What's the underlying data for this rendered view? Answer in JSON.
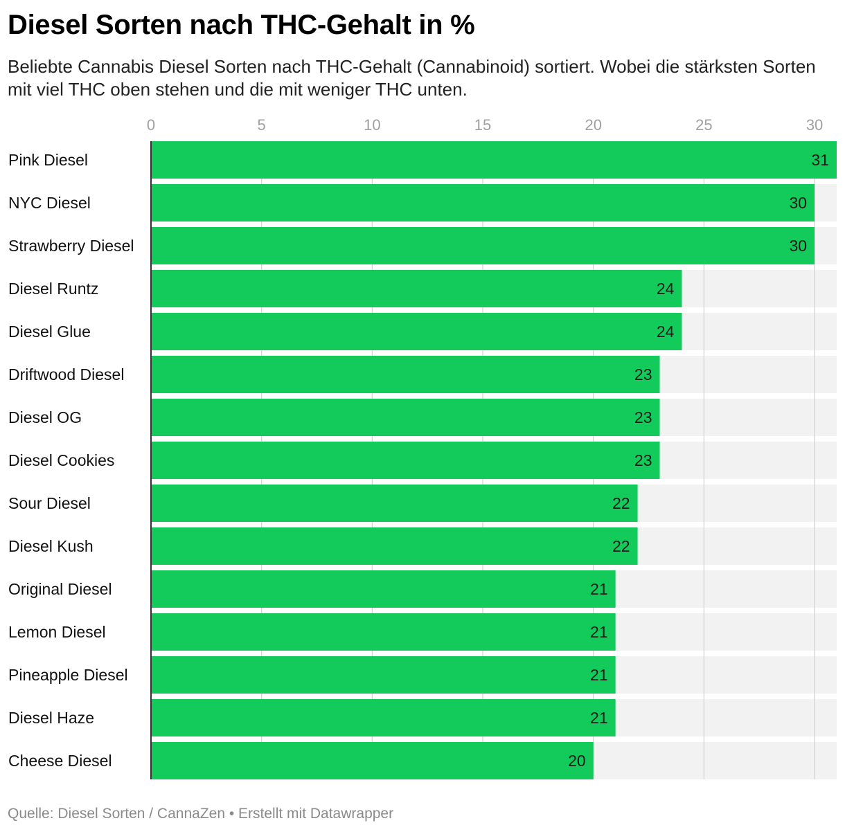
{
  "header": {
    "title": "Diesel Sorten nach THC-Gehalt in %",
    "subtitle": "Beliebte Cannabis Diesel Sorten nach THC-Gehalt (Cannabinoid) sortiert. Wobei die stärksten Sorten mit viel THC oben stehen und die mit weniger THC unten."
  },
  "footer": {
    "text": "Quelle: Diesel Sorten / CannaZen • Erstellt mit Datawrapper"
  },
  "colors": {
    "bar": "#13cb5a",
    "track": "#f2f2f2",
    "grid": "#d4d4d4",
    "axis": "#333333"
  },
  "chart_data": {
    "type": "bar",
    "orientation": "horizontal",
    "title": "Diesel Sorten nach THC-Gehalt in %",
    "xlabel": "",
    "ylabel": "",
    "xlim": [
      0,
      31
    ],
    "ticks": [
      0,
      5,
      10,
      15,
      20,
      25,
      30
    ],
    "grid": true,
    "categories": [
      "Pink Diesel",
      "NYC Diesel",
      "Strawberry Diesel",
      "Diesel Runtz",
      "Diesel Glue",
      "Driftwood Diesel",
      "Diesel OG",
      "Diesel Cookies",
      "Sour Diesel",
      "Diesel Kush",
      "Original Diesel",
      "Lemon Diesel",
      "Pineapple Diesel",
      "Diesel Haze",
      "Cheese Diesel"
    ],
    "values": [
      31,
      30,
      30,
      24,
      24,
      23,
      23,
      23,
      22,
      22,
      21,
      21,
      21,
      21,
      20
    ]
  }
}
